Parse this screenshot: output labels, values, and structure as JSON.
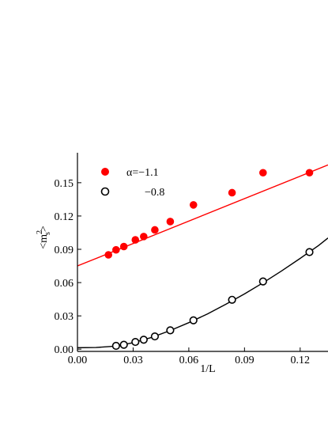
{
  "chart_data": {
    "type": "scatter",
    "title": "",
    "xlabel": "1/L",
    "ylabel": "<m_s^2>",
    "xlim": [
      0.0,
      0.135
    ],
    "ylim": [
      -0.002,
      0.177
    ],
    "x_ticks": [
      "0.00",
      "0.03",
      "0.06",
      "0.09",
      "0.12"
    ],
    "y_ticks": [
      "0.00",
      "0.03",
      "0.06",
      "0.09",
      "0.12",
      "0.15"
    ],
    "grid": false,
    "legend_position": "top-left",
    "series": [
      {
        "name": "α=−1.1",
        "marker": "filled-circle",
        "color": "#ff0000",
        "x": [
          0.0167,
          0.0208,
          0.025,
          0.0312,
          0.0357,
          0.0417,
          0.05,
          0.0625,
          0.0833,
          0.1,
          0.125
        ],
        "y": [
          0.085,
          0.0895,
          0.0925,
          0.0985,
          0.1015,
          0.1075,
          0.115,
          0.13,
          0.141,
          0.159,
          0.159
        ],
        "fit": {
          "shape": "line",
          "points": [
            [
              0.0,
              0.075
            ],
            [
              0.135,
              0.166
            ]
          ]
        }
      },
      {
        "name": "−0.8",
        "marker": "open-circle",
        "color": "#000000",
        "x": [
          0.0208,
          0.025,
          0.0312,
          0.0357,
          0.0417,
          0.05,
          0.0625,
          0.0833,
          0.1,
          0.125
        ],
        "y": [
          0.003,
          0.004,
          0.0065,
          0.0085,
          0.0115,
          0.017,
          0.026,
          0.0445,
          0.061,
          0.0875
        ],
        "fit": {
          "shape": "curve",
          "points": [
            [
              0.0,
              0.0013
            ],
            [
              0.01,
              0.0015
            ],
            [
              0.02,
              0.0027
            ],
            [
              0.03,
              0.0058
            ],
            [
              0.04,
              0.0106
            ],
            [
              0.05,
              0.0168
            ],
            [
              0.06,
              0.0239
            ],
            [
              0.07,
              0.0317
            ],
            [
              0.08,
              0.0405
            ],
            [
              0.09,
              0.0498
            ],
            [
              0.1,
              0.0598
            ],
            [
              0.11,
              0.0705
            ],
            [
              0.12,
              0.0818
            ],
            [
              0.13,
              0.0935
            ],
            [
              0.135,
              0.1002
            ]
          ]
        }
      }
    ]
  }
}
